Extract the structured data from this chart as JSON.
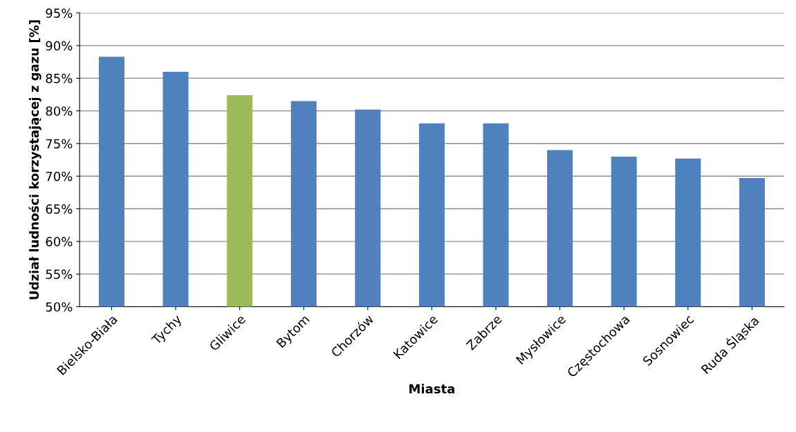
{
  "chart_data": {
    "type": "bar",
    "xlabel": "Miasta",
    "ylabel": "Udział ludności korzystającej z gazu [%]",
    "categories": [
      "Bielsko-Biała",
      "Tychy",
      "Gliwice",
      "Bytom",
      "Chorzów",
      "Katowice",
      "Zabrze",
      "Mysłowice",
      "Częstochowa",
      "Sosnowiec",
      "Ruda Śląska"
    ],
    "values": [
      88.3,
      86.0,
      82.4,
      81.5,
      80.2,
      78.1,
      78.1,
      74.0,
      73.0,
      72.7,
      69.7
    ],
    "colors": [
      "#4f81bd",
      "#4f81bd",
      "#9bbb59",
      "#4f81bd",
      "#4f81bd",
      "#4f81bd",
      "#4f81bd",
      "#4f81bd",
      "#4f81bd",
      "#4f81bd",
      "#4f81bd"
    ],
    "ylim": [
      50,
      95
    ],
    "yticks": [
      {
        "value": 50,
        "label": "50%"
      },
      {
        "value": 55,
        "label": "55%"
      },
      {
        "value": 60,
        "label": "60%"
      },
      {
        "value": 65,
        "label": "65%"
      },
      {
        "value": 70,
        "label": "70%"
      },
      {
        "value": 75,
        "label": "75%"
      },
      {
        "value": 80,
        "label": "80%"
      },
      {
        "value": 85,
        "label": "85%"
      },
      {
        "value": 90,
        "label": "90%"
      },
      {
        "value": 95,
        "label": "95%"
      }
    ],
    "grid": "y",
    "legend": false
  }
}
